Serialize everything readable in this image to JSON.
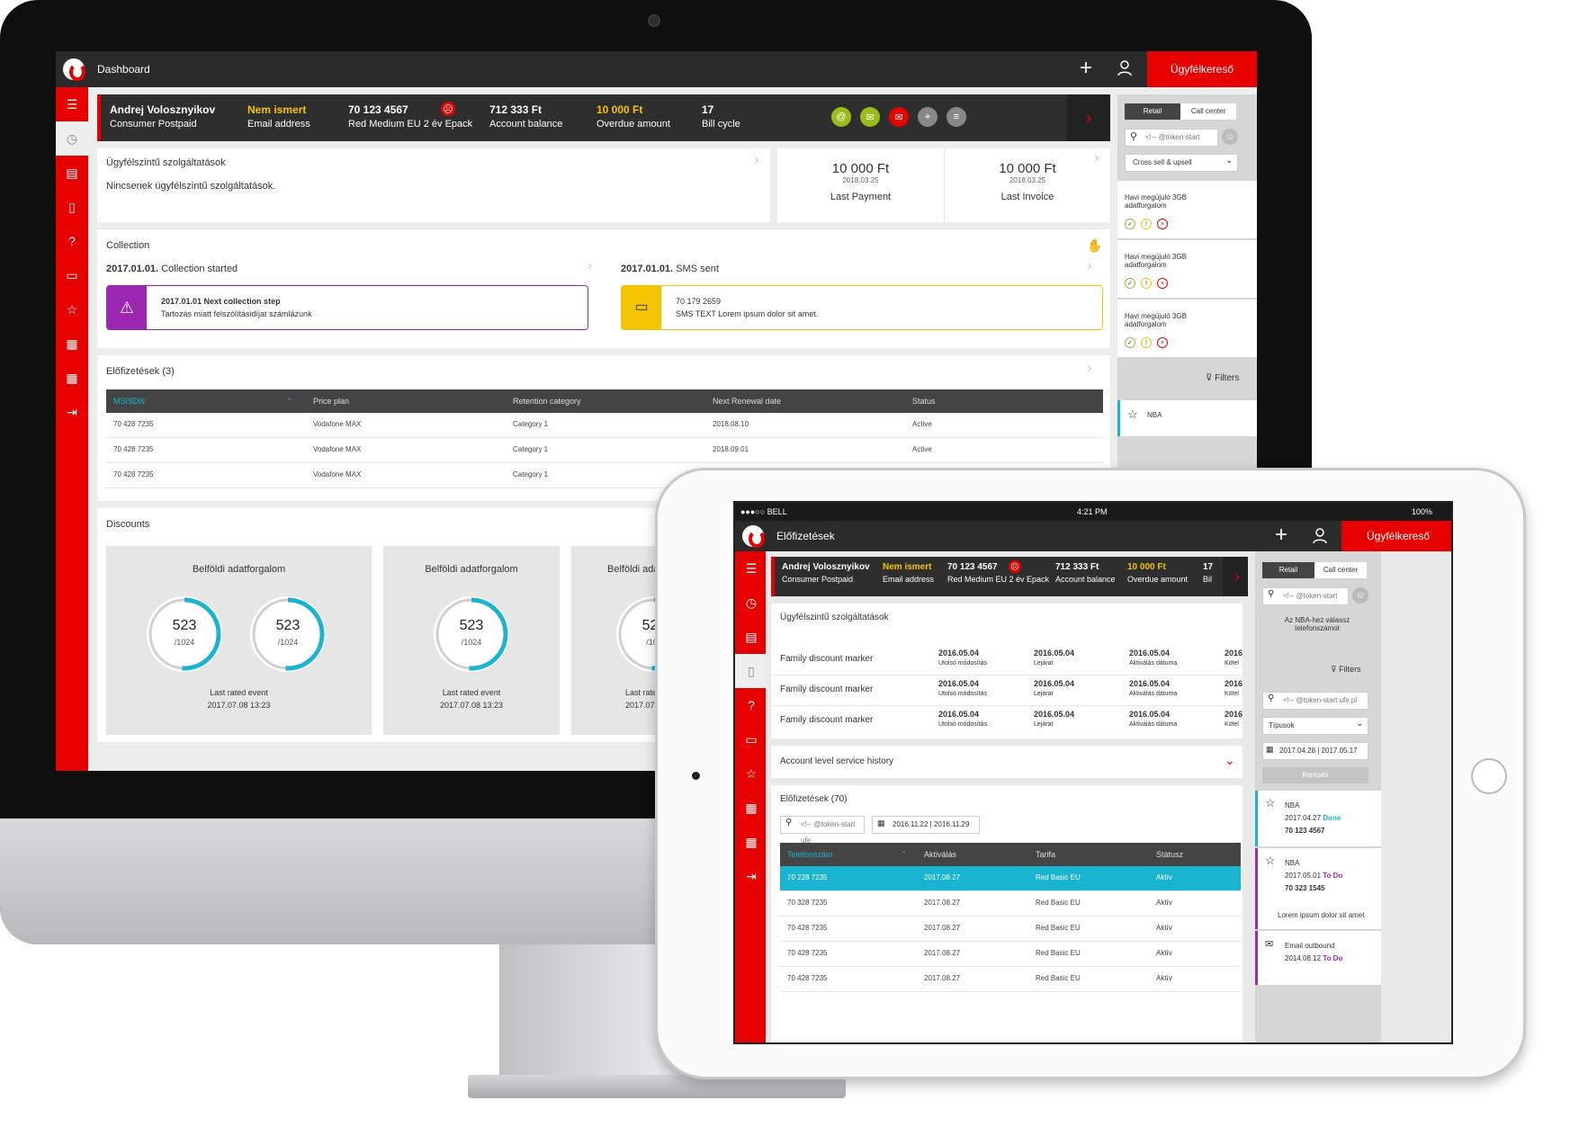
{
  "desktop": {
    "topbar": {
      "title": "Dashboard",
      "search_button": "Ügyfélkereső"
    },
    "customer": {
      "name": "Andrej Volosznyikov",
      "type": "Consumer Postpaid",
      "email_status": "Nem ismert",
      "email_label": "Email address",
      "phone": "70 123 4567",
      "plan": "Red Medium EU 2 év Epack",
      "balance": "712 333 Ft",
      "balance_label": "Account balance",
      "overdue": "10 000 Ft",
      "overdue_label": "Overdue amount",
      "bill_cycle": "17",
      "bill_cycle_label": "Bill cycle"
    },
    "services": {
      "title": "Ügyfélszintű szolgáltatások",
      "empty": "Nincsenek ügyfélszintű szolgáltatások."
    },
    "payments": [
      {
        "amount": "10 000 Ft",
        "date": "2018.03.25",
        "label": "Last Payment"
      },
      {
        "amount": "10 000 Ft",
        "date": "2018.03.25",
        "label": "Last Invoice"
      }
    ],
    "collection": {
      "title": "Collection",
      "left": {
        "date": "2017.01.01.",
        "text": "Collection started",
        "box_title": "2017.01.01 Next collection step",
        "box_text": "Tartozás miatt felszólításidíjat számlázunk"
      },
      "right": {
        "date": "2017.01.01.",
        "text": "SMS sent",
        "box_title": "70 179 2659",
        "box_text": "SMS TEXT Lorem ipsum dolor sit amet."
      }
    },
    "subscriptions": {
      "title": "Előfizetések (3)",
      "columns": [
        "MSISDN",
        "Price plan",
        "Retention category",
        "Next Renewal date",
        "Status"
      ],
      "rows": [
        [
          "70  428  7235",
          "Vodafone MAX",
          "Category 1",
          "2018.08.10",
          "Active"
        ],
        [
          "70  428  7235",
          "Vodafone MAX",
          "Category 1",
          "2018.09.01",
          "Active"
        ],
        [
          "70  428  7235",
          "Vodafone MAX",
          "Category 1",
          "",
          ""
        ]
      ]
    },
    "discounts": {
      "title": "Discounts",
      "cards": [
        {
          "title": "Belföldi adatforgalom",
          "donuts": [
            {
              "value": "523",
              "total": "/1024",
              "fraction": 0.51
            },
            {
              "value": "523",
              "total": "/1024",
              "fraction": 0.51
            }
          ],
          "event_label": "Last rated event",
          "event_date": "2017.07.08 13:23"
        },
        {
          "title": "Belföldi adatforgalom",
          "donuts": [
            {
              "value": "523",
              "total": "/1024",
              "fraction": 0.51
            }
          ],
          "event_label": "Last rated event",
          "event_date": "2017.07.08 13:23"
        },
        {
          "title": "Belföldi adat",
          "donuts": [
            {
              "value": "523",
              "total": "/102",
              "fraction": 0.51
            }
          ],
          "event_label": "Last rated",
          "event_date": "2017.07.08"
        }
      ]
    },
    "right_panel": {
      "tabs": [
        "Retail",
        "Call center"
      ],
      "search_placeholder": "<!-- @token-start",
      "dropdown": "Cross sell & upsell",
      "offers": [
        "Havi megújuló 3GB adatforgalom",
        "Havi megújuló 3GB adatforgalom",
        "Havi megújuló 3GB adatforgalom"
      ],
      "filters": "Filters",
      "nba": "NBA"
    }
  },
  "tablet": {
    "status": {
      "carrier": "●●●○○ BELL",
      "time": "4:21 PM",
      "battery": "100%"
    },
    "topbar": {
      "title": "Előfizetések",
      "search_button": "Ügyfélkereső"
    },
    "customer": {
      "name": "Andrej Volosznyikov",
      "type": "Consumer Postpaid",
      "email_status": "Nem ismert",
      "email_label": "Email address",
      "phone": "70 123 4567",
      "plan": "Red Medium EU 2 év Epack",
      "balance": "712 333 Ft",
      "balance_label": "Account balance",
      "overdue": "10 000 Ft",
      "overdue_label": "Overdue amount",
      "bill_cycle": "17",
      "bill_cycle_label": "Bil"
    },
    "services": {
      "title": "Ügyfélszintű szolgáltatások",
      "rows": [
        {
          "name": "Family discount marker",
          "dates": [
            [
              "2016.05.04",
              "Utolsó módosítás"
            ],
            [
              "2016.05.04",
              "Lejárat"
            ],
            [
              "2016.05.04",
              "Aktiválás dátuma"
            ],
            [
              "2016",
              "Kötel"
            ]
          ]
        },
        {
          "name": "Family discount marker",
          "dates": [
            [
              "2016.05.04",
              "Utolsó módosítás"
            ],
            [
              "2016.05.04",
              "Lejárat"
            ],
            [
              "2016.05.04",
              "Aktiválás dátuma"
            ],
            [
              "2016",
              "Kötel"
            ]
          ]
        },
        {
          "name": "Family discount marker",
          "dates": [
            [
              "2016.05.04",
              "Utolsó módosítás"
            ],
            [
              "2016.05.04",
              "Lejárat"
            ],
            [
              "2016.05.04",
              "Aktiválás dátuma"
            ],
            [
              "2016",
              "Kötel"
            ]
          ]
        }
      ]
    },
    "history": {
      "title": "Account level service history"
    },
    "subscriptions": {
      "title": "Előfizetések (70)",
      "search_placeholder": "<!-- @token-start ufe",
      "date_from": "2016.11.22",
      "date_to": "2016.11.29",
      "columns": [
        "Telefonszám",
        "Aktiválás",
        "Tarifa",
        "Státusz"
      ],
      "rows": [
        [
          "70  228  7235",
          "2017.08.27",
          "Red Basic EU",
          "Aktív"
        ],
        [
          "70  328  7235",
          "2017.08.27",
          "Red Basic EU",
          "Aktív"
        ],
        [
          "70  428  7235",
          "2017.08.27",
          "Red Basic EU",
          "Aktív"
        ],
        [
          "70  428  7235",
          "2017.08.27",
          "Red Basic EU",
          "Aktív"
        ],
        [
          "70  428  7235",
          "2017.08.27",
          "Red Basic EU",
          "Aktív"
        ]
      ]
    },
    "right_panel": {
      "tabs": [
        "Retail",
        "Call center"
      ],
      "search_placeholder": "<!-- @token-start",
      "hint": "Az NBA-hez válassz telefonszámot",
      "filters": "Filters",
      "search2_placeholder": "<!-- @token-start ufe.pl",
      "type_dropdown": "Típusok",
      "date_from": "2017.04.28",
      "date_to": "2017.05.17",
      "search_button": "Keresés",
      "items": [
        {
          "title": "NBA",
          "date": "2017.04.27",
          "state": "Done",
          "phone": "70 123 4567",
          "note": ""
        },
        {
          "title": "NBA",
          "date": "2017.05.01",
          "state": "To Do",
          "phone": "70 323 1545",
          "note": "Lorem ipsum dolor sit amet"
        },
        {
          "title": "Email outbound",
          "date": "2014.08.12",
          "state": "To Do",
          "phone": "",
          "note": ""
        }
      ]
    }
  }
}
